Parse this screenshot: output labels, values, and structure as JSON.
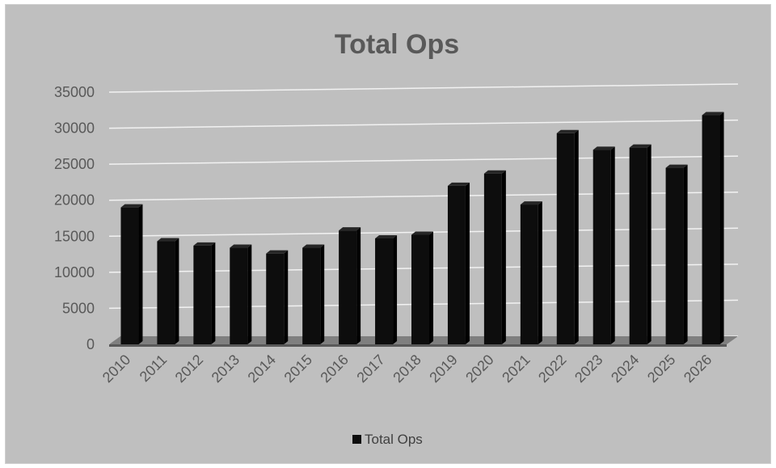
{
  "chart_data": {
    "type": "bar",
    "title": "Total Ops",
    "categories": [
      "2010",
      "2011",
      "2012",
      "2013",
      "2014",
      "2015",
      "2016",
      "2017",
      "2018",
      "2019",
      "2020",
      "2021",
      "2022",
      "2023",
      "2024",
      "2025",
      "2026"
    ],
    "series": [
      {
        "name": "Total Ops",
        "color": "#0d0d0d",
        "values": [
          19000,
          14300,
          13700,
          13400,
          12600,
          13400,
          15800,
          14700,
          15200,
          22000,
          23700,
          19400,
          29300,
          27000,
          27300,
          24500,
          31800
        ]
      }
    ],
    "xlabel": "",
    "ylabel": "",
    "ylim": [
      0,
      35000
    ],
    "yticks": [
      0,
      5000,
      10000,
      15000,
      20000,
      25000,
      30000,
      35000
    ],
    "grid": true,
    "legend_position": "bottom",
    "background_color": "#bfbfbf",
    "gridline_color": "#f2f2f2",
    "style": "3d-column"
  }
}
